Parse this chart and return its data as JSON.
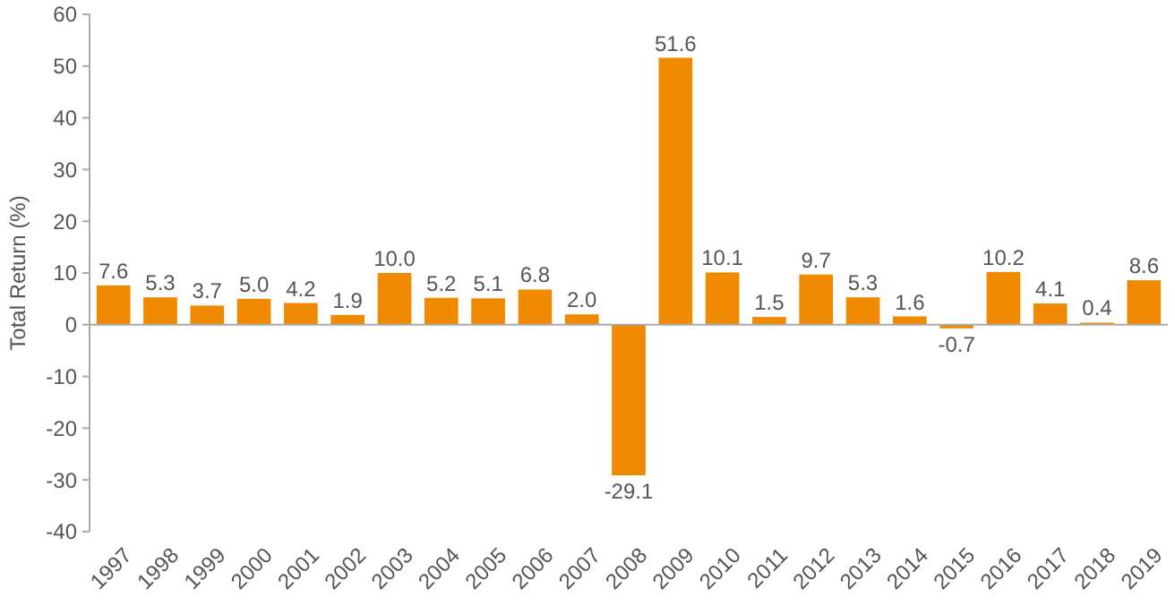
{
  "chart_data": {
    "type": "bar",
    "ylabel": "Total Return (%)",
    "categories": [
      "1997",
      "1998",
      "1999",
      "2000",
      "2001",
      "2002",
      "2003",
      "2004",
      "2005",
      "2006",
      "2007",
      "2008",
      "2009",
      "2010",
      "2011",
      "2012",
      "2013",
      "2014",
      "2015",
      "2016",
      "2017",
      "2018",
      "2019"
    ],
    "values": [
      7.6,
      5.3,
      3.7,
      5.0,
      4.2,
      1.9,
      10.0,
      5.2,
      5.1,
      6.8,
      2.0,
      -29.1,
      51.6,
      10.1,
      1.5,
      9.7,
      5.3,
      1.6,
      -0.7,
      10.2,
      4.1,
      0.4,
      8.6
    ],
    "value_labels": [
      "7.6",
      "5.3",
      "3.7",
      "5.0",
      "4.2",
      "1.9",
      "10.0",
      "5.2",
      "5.1",
      "6.8",
      "2.0",
      "-29.1",
      "51.6",
      "10.1",
      "1.5",
      "9.7",
      "5.3",
      "1.6",
      "-0.7",
      "10.2",
      "4.1",
      "0.4",
      "8.6"
    ],
    "color": "#f08a00",
    "ylim": [
      -40,
      60
    ],
    "yticks": [
      -40,
      -30,
      -20,
      -10,
      0,
      10,
      20,
      30,
      40,
      50,
      60
    ]
  }
}
